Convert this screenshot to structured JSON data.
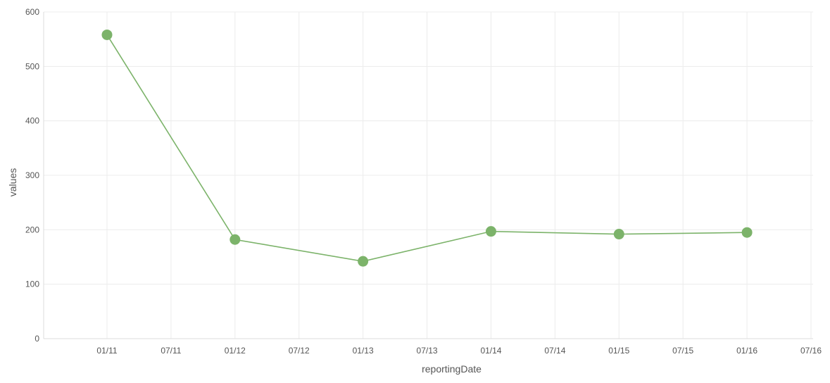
{
  "chart_data": {
    "type": "line",
    "title": "",
    "xlabel": "reportingDate",
    "ylabel": "values",
    "x_tick_labels": [
      "01/11",
      "07/11",
      "01/12",
      "07/12",
      "01/13",
      "07/13",
      "01/14",
      "07/14",
      "01/15",
      "07/15",
      "01/16",
      "07/16"
    ],
    "y_tick_labels": [
      "0",
      "100",
      "200",
      "300",
      "400",
      "500",
      "600"
    ],
    "y_ticks": [
      0,
      100,
      200,
      300,
      400,
      500,
      600
    ],
    "ylim": [
      0,
      600
    ],
    "xlim": [
      "2011-01",
      "2016-07"
    ],
    "grid": true,
    "legend": "none",
    "series": [
      {
        "x": [
          "2011-01",
          "2012-01",
          "2013-01",
          "2014-01",
          "2015-01",
          "2016-01"
        ],
        "values": [
          558,
          182,
          142,
          197,
          192,
          195
        ],
        "color": "#7cb36a"
      }
    ]
  }
}
